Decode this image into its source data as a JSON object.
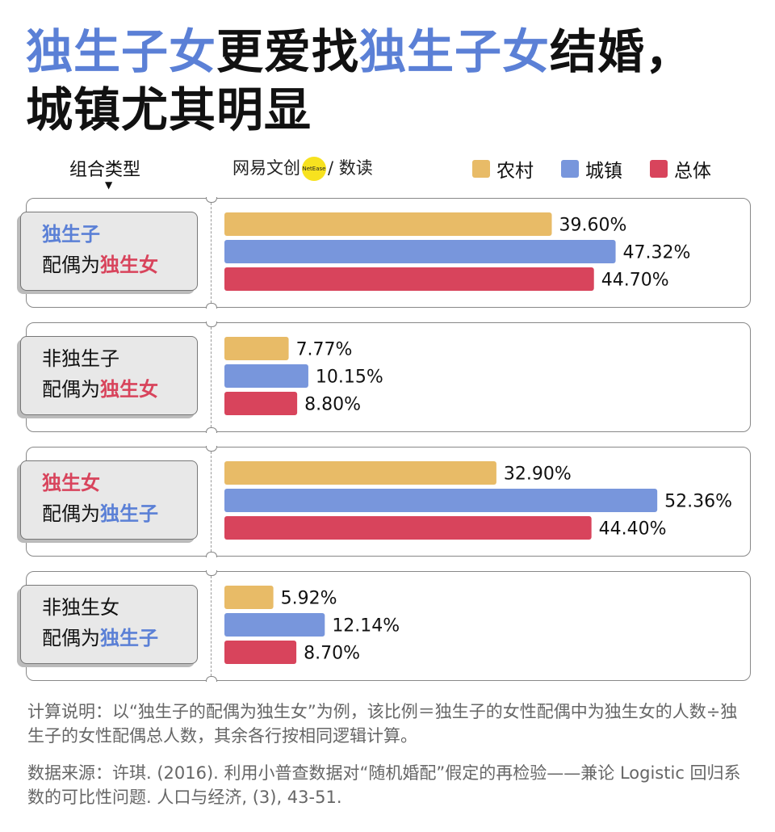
{
  "title": {
    "line1_parts": [
      "独生子女",
      "更爱找",
      "独生子女",
      "结婚，"
    ],
    "line2": "城镇尤其明显"
  },
  "header": {
    "column_label": "组合类型",
    "arrow": "▼",
    "brand_name": "网易文创",
    "brand_badge": "NetEase",
    "brand_suffix": "/ 数读"
  },
  "legend": [
    {
      "label": "农村",
      "color": "#e8bb67"
    },
    {
      "label": "城镇",
      "color": "#7896dc"
    },
    {
      "label": "总体",
      "color": "#d8445c"
    }
  ],
  "groups": [
    {
      "line1": "独生子",
      "line1_color": "blue",
      "line2_prefix": "配偶为",
      "line2_highlight": "独生女",
      "line2_color": "red"
    },
    {
      "line1": "非独生子",
      "line1_color": "none",
      "line2_prefix": "配偶为",
      "line2_highlight": "独生女",
      "line2_color": "red"
    },
    {
      "line1": "独生女",
      "line1_color": "red",
      "line2_prefix": "配偶为",
      "line2_highlight": "独生子",
      "line2_color": "blue"
    },
    {
      "line1": "非独生女",
      "line1_color": "none",
      "line2_prefix": "配偶为",
      "line2_highlight": "独生子",
      "line2_color": "blue"
    }
  ],
  "chart_data": {
    "type": "bar",
    "orientation": "horizontal",
    "categories": [
      "独生子配偶为独生女",
      "非独生子配偶为独生女",
      "独生女配偶为独生子",
      "非独生女配偶为独生子"
    ],
    "series": [
      {
        "name": "农村",
        "color": "#e8bb67",
        "values": [
          39.6,
          7.77,
          32.9,
          5.92
        ],
        "labels": [
          "39.60%",
          "7.77%",
          "32.90%",
          "5.92%"
        ]
      },
      {
        "name": "城镇",
        "color": "#7896dc",
        "values": [
          47.32,
          10.15,
          52.36,
          12.14
        ],
        "labels": [
          "47.32%",
          "10.15%",
          "52.36%",
          "12.14%"
        ]
      },
      {
        "name": "总体",
        "color": "#d8445c",
        "values": [
          44.7,
          8.8,
          44.4,
          8.7
        ],
        "labels": [
          "44.70%",
          "8.80%",
          "44.40%",
          "8.70%"
        ]
      }
    ],
    "xlim": [
      0,
      60
    ]
  },
  "notes": {
    "calc": "计算说明：以“独生子的配偶为独生女”为例，该比例＝独生子的女性配偶中为独生女的人数÷独生子的女性配偶总人数，其余各行按相同逻辑计算。",
    "source": "数据来源：许琪. (2016). 利用小普查数据对“随机婚配”假定的再检验——兼论 Logistic 回归系数的可比性问题. 人口与经济, (3), 43-51."
  }
}
